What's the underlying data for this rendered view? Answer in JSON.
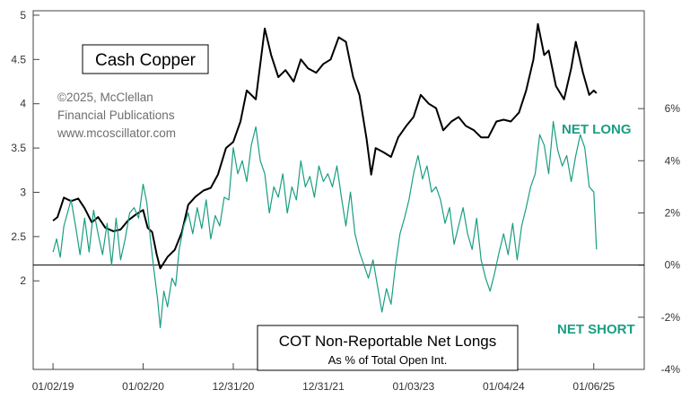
{
  "chart_data": {
    "type": "line",
    "title": "Cash Copper",
    "credit": [
      "©2025, McClellan",
      "Financial Publications",
      "www.mcoscillator.com"
    ],
    "lower_title": "COT Non-Reportable Net Longs",
    "lower_subtitle": "As % of Total Open Int.",
    "net_long_label": "NET LONG",
    "net_short_label": "NET SHORT",
    "x_tick_labels": [
      "01/02/19",
      "01/02/20",
      "12/31/20",
      "12/31/21",
      "01/03/23",
      "01/04/24",
      "01/06/25"
    ],
    "x_tick_times": [
      2019.0,
      2020.0,
      2021.0,
      2022.0,
      2023.0,
      2024.0,
      2025.0
    ],
    "xlim": [
      2018.78,
      2025.56
    ],
    "y_left_ticks": [
      "5",
      "4.5",
      "4",
      "3.5",
      "3",
      "2.5",
      "2"
    ],
    "y_left_values": [
      5,
      4.5,
      4,
      3.5,
      3,
      2.5,
      2
    ],
    "ylim_left": [
      1.0,
      5.05
    ],
    "y_right_ticks": [
      "6%",
      "4%",
      "2%",
      "0%",
      "-2%",
      "-4%"
    ],
    "y_right_values": [
      6,
      4,
      2,
      0,
      -2,
      -4
    ],
    "ylim_right": [
      -4.0,
      9.75
    ],
    "zero_line": 0,
    "colors": {
      "copper": "#000000",
      "cot": "#1a9e82",
      "axis": "#444444"
    },
    "series": [
      {
        "name": "Cash Copper",
        "axis": "left",
        "points": [
          [
            2019.0,
            2.68
          ],
          [
            2019.05,
            2.72
          ],
          [
            2019.12,
            2.94
          ],
          [
            2019.2,
            2.9
          ],
          [
            2019.28,
            2.93
          ],
          [
            2019.35,
            2.82
          ],
          [
            2019.43,
            2.66
          ],
          [
            2019.5,
            2.72
          ],
          [
            2019.58,
            2.6
          ],
          [
            2019.67,
            2.56
          ],
          [
            2019.75,
            2.58
          ],
          [
            2019.83,
            2.68
          ],
          [
            2019.92,
            2.75
          ],
          [
            2020.0,
            2.8
          ],
          [
            2020.05,
            2.6
          ],
          [
            2020.1,
            2.55
          ],
          [
            2020.15,
            2.3
          ],
          [
            2020.19,
            2.14
          ],
          [
            2020.27,
            2.27
          ],
          [
            2020.35,
            2.35
          ],
          [
            2020.43,
            2.55
          ],
          [
            2020.5,
            2.86
          ],
          [
            2020.58,
            2.95
          ],
          [
            2020.67,
            3.02
          ],
          [
            2020.75,
            3.05
          ],
          [
            2020.83,
            3.2
          ],
          [
            2020.92,
            3.5
          ],
          [
            2021.0,
            3.57
          ],
          [
            2021.08,
            3.8
          ],
          [
            2021.15,
            4.15
          ],
          [
            2021.25,
            4.05
          ],
          [
            2021.35,
            4.85
          ],
          [
            2021.42,
            4.55
          ],
          [
            2021.5,
            4.3
          ],
          [
            2021.58,
            4.38
          ],
          [
            2021.67,
            4.25
          ],
          [
            2021.75,
            4.5
          ],
          [
            2021.83,
            4.4
          ],
          [
            2021.92,
            4.35
          ],
          [
            2022.0,
            4.45
          ],
          [
            2022.08,
            4.5
          ],
          [
            2022.17,
            4.75
          ],
          [
            2022.25,
            4.7
          ],
          [
            2022.33,
            4.3
          ],
          [
            2022.4,
            4.1
          ],
          [
            2022.48,
            3.6
          ],
          [
            2022.53,
            3.2
          ],
          [
            2022.58,
            3.5
          ],
          [
            2022.67,
            3.45
          ],
          [
            2022.75,
            3.4
          ],
          [
            2022.83,
            3.62
          ],
          [
            2022.92,
            3.75
          ],
          [
            2023.0,
            3.85
          ],
          [
            2023.08,
            4.1
          ],
          [
            2023.17,
            4.0
          ],
          [
            2023.25,
            3.95
          ],
          [
            2023.33,
            3.7
          ],
          [
            2023.42,
            3.8
          ],
          [
            2023.5,
            3.85
          ],
          [
            2023.58,
            3.75
          ],
          [
            2023.67,
            3.7
          ],
          [
            2023.75,
            3.62
          ],
          [
            2023.83,
            3.62
          ],
          [
            2023.92,
            3.8
          ],
          [
            2024.0,
            3.82
          ],
          [
            2024.08,
            3.8
          ],
          [
            2024.17,
            3.9
          ],
          [
            2024.25,
            4.15
          ],
          [
            2024.33,
            4.5
          ],
          [
            2024.38,
            4.9
          ],
          [
            2024.45,
            4.55
          ],
          [
            2024.5,
            4.6
          ],
          [
            2024.58,
            4.2
          ],
          [
            2024.67,
            4.05
          ],
          [
            2024.75,
            4.4
          ],
          [
            2024.8,
            4.7
          ],
          [
            2024.88,
            4.35
          ],
          [
            2024.95,
            4.1
          ],
          [
            2025.0,
            4.15
          ],
          [
            2025.03,
            4.12
          ]
        ]
      },
      {
        "name": "COT Non-Reportable Net Longs",
        "axis": "right",
        "points": [
          [
            2019.0,
            0.5
          ],
          [
            2019.04,
            1.0
          ],
          [
            2019.08,
            0.3
          ],
          [
            2019.12,
            1.5
          ],
          [
            2019.16,
            2.0
          ],
          [
            2019.2,
            2.5
          ],
          [
            2019.25,
            1.5
          ],
          [
            2019.3,
            0.4
          ],
          [
            2019.35,
            1.8
          ],
          [
            2019.4,
            0.5
          ],
          [
            2019.45,
            2.1
          ],
          [
            2019.5,
            1.2
          ],
          [
            2019.55,
            0.4
          ],
          [
            2019.6,
            1.6
          ],
          [
            2019.65,
            0.0
          ],
          [
            2019.7,
            1.8
          ],
          [
            2019.75,
            0.2
          ],
          [
            2019.8,
            1.0
          ],
          [
            2019.85,
            2.0
          ],
          [
            2019.9,
            2.2
          ],
          [
            2019.95,
            1.8
          ],
          [
            2020.0,
            3.1
          ],
          [
            2020.04,
            2.4
          ],
          [
            2020.08,
            1.0
          ],
          [
            2020.12,
            -0.2
          ],
          [
            2020.16,
            -1.3
          ],
          [
            2020.19,
            -2.4
          ],
          [
            2020.23,
            -1.0
          ],
          [
            2020.27,
            -1.6
          ],
          [
            2020.32,
            -0.5
          ],
          [
            2020.36,
            -0.8
          ],
          [
            2020.4,
            0.6
          ],
          [
            2020.45,
            1.5
          ],
          [
            2020.5,
            2.0
          ],
          [
            2020.55,
            1.2
          ],
          [
            2020.6,
            2.2
          ],
          [
            2020.65,
            1.4
          ],
          [
            2020.7,
            2.5
          ],
          [
            2020.75,
            1.0
          ],
          [
            2020.8,
            1.9
          ],
          [
            2020.85,
            1.5
          ],
          [
            2020.9,
            2.6
          ],
          [
            2020.95,
            2.5
          ],
          [
            2021.0,
            4.5
          ],
          [
            2021.05,
            3.5
          ],
          [
            2021.1,
            4.0
          ],
          [
            2021.15,
            3.2
          ],
          [
            2021.2,
            4.6
          ],
          [
            2021.25,
            5.3
          ],
          [
            2021.3,
            4.0
          ],
          [
            2021.35,
            3.5
          ],
          [
            2021.4,
            2.0
          ],
          [
            2021.45,
            3.0
          ],
          [
            2021.5,
            2.6
          ],
          [
            2021.55,
            3.5
          ],
          [
            2021.6,
            2.0
          ],
          [
            2021.65,
            3.0
          ],
          [
            2021.7,
            2.5
          ],
          [
            2021.75,
            4.0
          ],
          [
            2021.8,
            3.0
          ],
          [
            2021.85,
            3.4
          ],
          [
            2021.9,
            2.6
          ],
          [
            2021.95,
            3.8
          ],
          [
            2022.0,
            3.2
          ],
          [
            2022.05,
            3.5
          ],
          [
            2022.1,
            3.0
          ],
          [
            2022.15,
            3.8
          ],
          [
            2022.2,
            2.6
          ],
          [
            2022.25,
            1.5
          ],
          [
            2022.3,
            2.8
          ],
          [
            2022.35,
            1.2
          ],
          [
            2022.4,
            0.5
          ],
          [
            2022.45,
            0.0
          ],
          [
            2022.5,
            -0.5
          ],
          [
            2022.55,
            0.2
          ],
          [
            2022.6,
            -0.8
          ],
          [
            2022.65,
            -1.8
          ],
          [
            2022.7,
            -0.9
          ],
          [
            2022.75,
            -1.5
          ],
          [
            2022.8,
            0.0
          ],
          [
            2022.85,
            1.2
          ],
          [
            2022.9,
            1.8
          ],
          [
            2022.95,
            2.5
          ],
          [
            2023.0,
            3.5
          ],
          [
            2023.05,
            4.2
          ],
          [
            2023.1,
            3.3
          ],
          [
            2023.15,
            3.8
          ],
          [
            2023.2,
            2.8
          ],
          [
            2023.25,
            3.0
          ],
          [
            2023.3,
            2.5
          ],
          [
            2023.35,
            1.6
          ],
          [
            2023.4,
            2.2
          ],
          [
            2023.45,
            0.8
          ],
          [
            2023.5,
            1.5
          ],
          [
            2023.55,
            2.2
          ],
          [
            2023.6,
            1.2
          ],
          [
            2023.65,
            0.6
          ],
          [
            2023.7,
            1.8
          ],
          [
            2023.75,
            0.2
          ],
          [
            2023.8,
            -0.5
          ],
          [
            2023.85,
            -1.0
          ],
          [
            2023.9,
            -0.3
          ],
          [
            2023.95,
            0.5
          ],
          [
            2024.0,
            1.2
          ],
          [
            2024.05,
            0.4
          ],
          [
            2024.1,
            1.6
          ],
          [
            2024.15,
            0.2
          ],
          [
            2024.2,
            1.5
          ],
          [
            2024.25,
            2.2
          ],
          [
            2024.3,
            3.0
          ],
          [
            2024.35,
            3.5
          ],
          [
            2024.4,
            5.0
          ],
          [
            2024.45,
            4.6
          ],
          [
            2024.5,
            3.5
          ],
          [
            2024.55,
            5.5
          ],
          [
            2024.6,
            4.4
          ],
          [
            2024.65,
            3.8
          ],
          [
            2024.7,
            4.2
          ],
          [
            2024.75,
            3.2
          ],
          [
            2024.8,
            4.2
          ],
          [
            2024.85,
            5.0
          ],
          [
            2024.9,
            4.5
          ],
          [
            2024.95,
            3.0
          ],
          [
            2025.0,
            2.8
          ],
          [
            2025.03,
            0.6
          ]
        ]
      }
    ]
  }
}
